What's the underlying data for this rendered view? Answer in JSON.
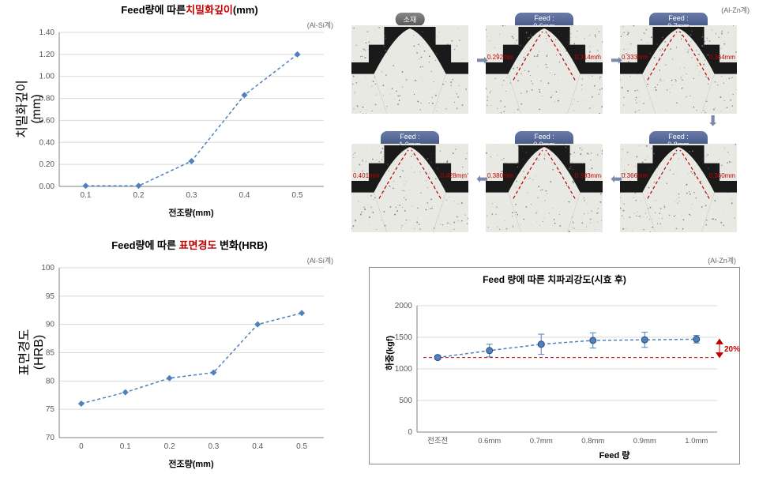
{
  "chart1": {
    "title_prefix": "Feed량에 따른",
    "title_red": "치밀화깊이",
    "title_suffix": "(mm)",
    "tag": "(Al-Si계)",
    "x_label": "전조량(mm)",
    "y_label": "치밀화깊이(mm)",
    "x_ticks": [
      "0.1",
      "0.2",
      "0.3",
      "0.4",
      "0.5"
    ],
    "y_ticks": [
      "0.00",
      "0.20",
      "0.40",
      "0.60",
      "0.80",
      "1.00",
      "1.20",
      "1.40"
    ],
    "series_color": "#4f81bd",
    "points": [
      [
        0.1,
        0.005
      ],
      [
        0.2,
        0.005
      ],
      [
        0.3,
        0.23
      ],
      [
        0.4,
        0.83
      ],
      [
        0.5,
        1.2
      ]
    ],
    "xlim": [
      0.05,
      0.55
    ],
    "ylim": [
      0,
      1.4
    ],
    "grid_color": "#d9d9d9",
    "bg": "#ffffff"
  },
  "chart2": {
    "title_prefix": "Feed량에 따른 ",
    "title_red": "표면경도",
    "title_suffix": " 변화(HRB)",
    "tag": "(Al-Si계)",
    "x_label": "전조량(mm)",
    "y_label": "표면경도(HRB)",
    "x_ticks": [
      "0",
      "0.1",
      "0.2",
      "0.3",
      "0.4",
      "0.5"
    ],
    "y_ticks": [
      "70",
      "75",
      "80",
      "85",
      "90",
      "95",
      "100"
    ],
    "series_color": "#4f81bd",
    "points": [
      [
        0,
        76
      ],
      [
        0.1,
        78
      ],
      [
        0.2,
        80.5
      ],
      [
        0.3,
        81.5
      ],
      [
        0.4,
        90
      ],
      [
        0.5,
        92
      ]
    ],
    "xlim": [
      -0.05,
      0.55
    ],
    "ylim": [
      70,
      100
    ],
    "grid_color": "#d9d9d9",
    "bg": "#ffffff"
  },
  "threads": {
    "tag": "(Al-Zn계)",
    "items": [
      {
        "label": "소재",
        "pill": "gray"
      },
      {
        "label": "Feed : 0.6mm",
        "left": "0.292mm",
        "right": "0.314mm"
      },
      {
        "label": "Feed : 0.7mm",
        "left": "0.333mm",
        "right": "0.364mm"
      },
      {
        "label": "Feed : 1.0mm",
        "left": "0.401mm",
        "right": "0.428mm"
      },
      {
        "label": "Feed : 0.9mm",
        "left": "0.380mm",
        "right": "0.383mm"
      },
      {
        "label": "Feed : 0.8mm",
        "left": "0.366mm",
        "right": "0.360mm"
      }
    ]
  },
  "chart3": {
    "title": "Feed 량에 따른 치파괴강도(시효 후)",
    "tag": "(Al-Zn계)",
    "x_label": "Feed 량",
    "y_label": "하중(kgf)",
    "x_ticks": [
      "전조전",
      "0.6mm",
      "0.7mm",
      "0.8mm",
      "0.9mm",
      "1.0mm"
    ],
    "y_ticks": [
      "0",
      "500",
      "1000",
      "1500",
      "2000"
    ],
    "series_color": "#4f81bd",
    "points": [
      [
        0,
        1180
      ],
      [
        1,
        1290
      ],
      [
        2,
        1390
      ],
      [
        3,
        1450
      ],
      [
        4,
        1460
      ],
      [
        5,
        1470
      ]
    ],
    "err": [
      30,
      100,
      160,
      120,
      120,
      60
    ],
    "xlim": [
      -0.4,
      5.4
    ],
    "ylim": [
      0,
      2000
    ],
    "grid_color": "#d9d9d9",
    "bg": "#ffffff",
    "pct_label": "20%",
    "baseline": 1180
  }
}
